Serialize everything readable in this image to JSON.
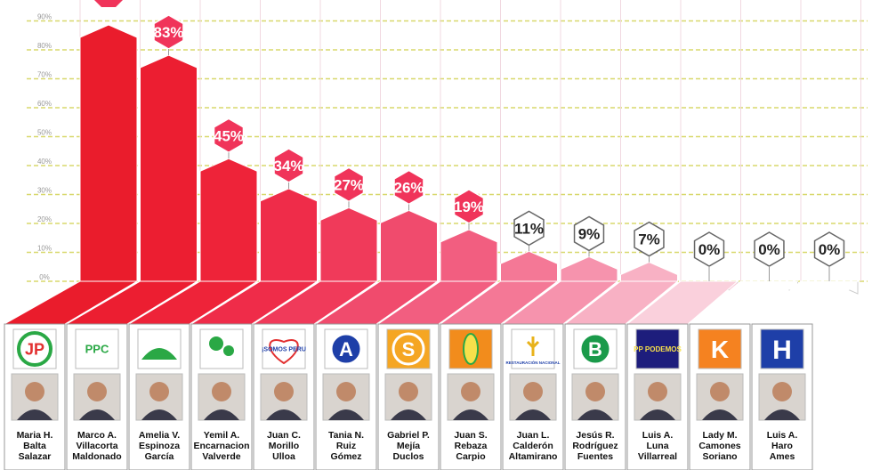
{
  "chart_data": {
    "type": "bar",
    "ylim": [
      0,
      100
    ],
    "ytick_labels": [
      "0%",
      "10%",
      "20%",
      "30%",
      "40%",
      "50%",
      "60%",
      "70%",
      "80%",
      "90%"
    ],
    "grid": true,
    "value_labels": [
      "",
      "83%",
      "45%",
      "34%",
      "27%",
      "26%",
      "19%",
      "11%",
      "9%",
      "7%",
      "0%",
      "0%",
      "0%"
    ],
    "values": [
      92,
      83,
      45,
      34,
      27,
      26,
      19,
      11,
      9,
      7,
      0,
      0,
      0
    ],
    "categories": [
      [
        "Maria H.",
        "Balta",
        "Salazar"
      ],
      [
        "Marco A.",
        "Villacorta",
        "Maldonado"
      ],
      [
        "Amelia V.",
        "Espinoza",
        "García"
      ],
      [
        "Yemil A.",
        "Encarnacion",
        "Valverde"
      ],
      [
        "Juan C.",
        "Morillo",
        "Ulloa"
      ],
      [
        "Tania N.",
        "Ruiz",
        "Gómez"
      ],
      [
        "Gabriel P.",
        "Mejía",
        "Duclos"
      ],
      [
        "Juan S.",
        "Rebaza",
        "Carpio"
      ],
      [
        "Juan L.",
        "Calderón",
        "Altamirano"
      ],
      [
        "Jesús R.",
        "Rodríguez",
        "Fuentes"
      ],
      [
        "Luis A.",
        "Luna",
        "Villarreal"
      ],
      [
        "Lady M.",
        "Camones",
        "Soriano"
      ],
      [
        "Luis A.",
        "Haro",
        "Ames"
      ]
    ],
    "party_logos": [
      {
        "icon": "jp-logo",
        "text": "JP"
      },
      {
        "icon": "ppc-logo",
        "text": "PPC"
      },
      {
        "icon": "landscape-logo",
        "text": ""
      },
      {
        "icon": "family-logo",
        "text": ""
      },
      {
        "icon": "heart-logo",
        "text": "¡SOMOS PERU"
      },
      {
        "icon": "circle-a-logo",
        "text": "A"
      },
      {
        "icon": "circle-s-logo",
        "text": "S"
      },
      {
        "icon": "corn-logo",
        "text": ""
      },
      {
        "icon": "wheat-logo",
        "text": "RESTAURACIÓN NACIONAL"
      },
      {
        "icon": "circle-b-logo",
        "text": "B"
      },
      {
        "icon": "pp-logo",
        "text": "PP PODEMOS"
      },
      {
        "icon": "k-logo",
        "text": "K"
      },
      {
        "icon": "h-logo",
        "text": "H"
      }
    ],
    "colors": {
      "bars": [
        "#ea1c2c",
        "#ec1e31",
        "#ee2339",
        "#ef2c49",
        "#f03a5a",
        "#f04b6d",
        "#f25e80",
        "#f47896",
        "#f693ad",
        "#f8b1c4",
        "#fad0dc",
        "#ffffff",
        "#ffffff"
      ],
      "badge_fill_strong": "#f0345a",
      "grid": "#d8d86c",
      "panel_border": "#999999"
    }
  }
}
